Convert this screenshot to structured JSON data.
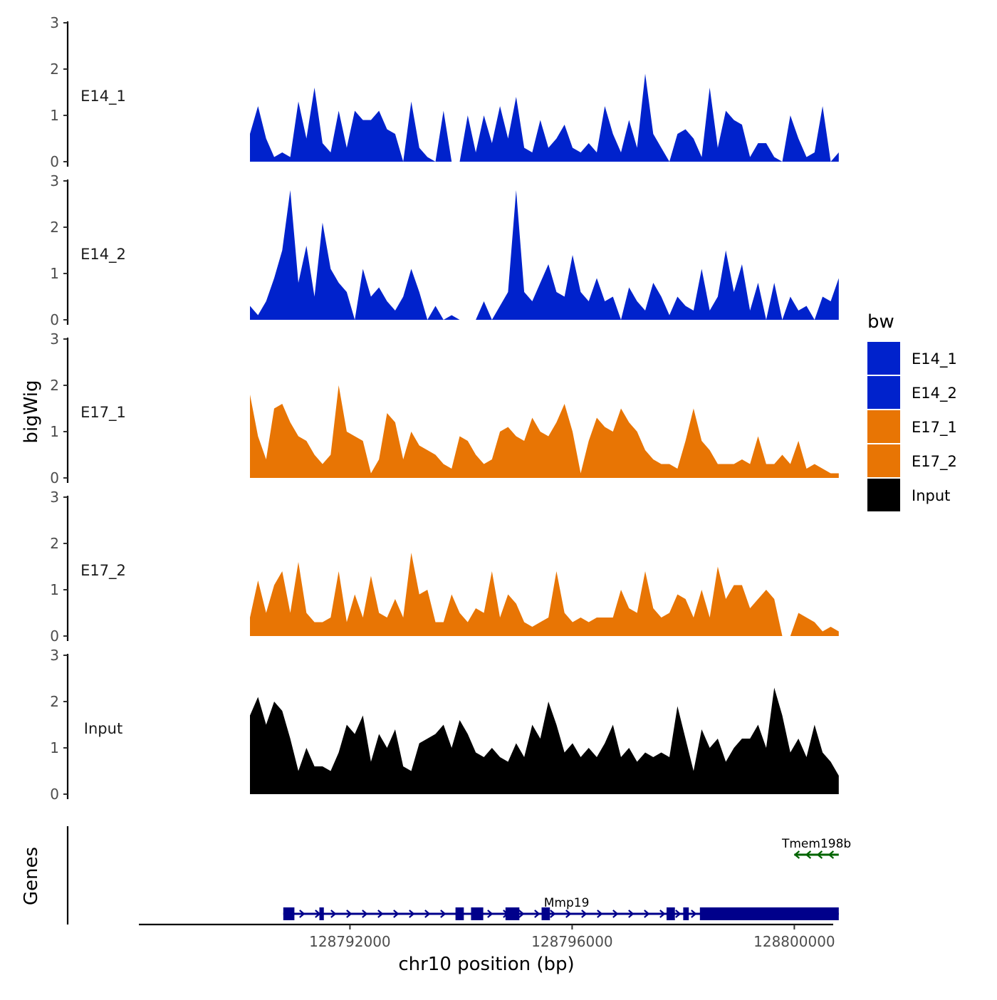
{
  "chart_data": {
    "type": "area",
    "title": "",
    "ylabel": "bigWig",
    "xlabel": "chr10 position (bp)",
    "genes_label": "Genes",
    "ylim": [
      0,
      3
    ],
    "y_ticks": [
      "0",
      "1",
      "2",
      "3"
    ],
    "xlim": [
      128788200,
      128800700
    ],
    "x_ticks": [
      128792000,
      128796000,
      128800000
    ],
    "x_tick_labels": [
      "128792000",
      "128796000",
      "128800000"
    ],
    "data_start": 128790200,
    "data_end": 128800800,
    "legend": {
      "title": "bw",
      "position": "right",
      "entries": [
        {
          "label": "E14_1",
          "color": "#0022CC"
        },
        {
          "label": "E14_2",
          "color": "#0022CC"
        },
        {
          "label": "E17_1",
          "color": "#E87504"
        },
        {
          "label": "E17_2",
          "color": "#E87504"
        },
        {
          "label": "Input",
          "color": "#000000"
        }
      ]
    },
    "series": [
      {
        "name": "E14_1",
        "color": "#0022CC",
        "values": [
          0.6,
          1.2,
          0.5,
          0.1,
          0.2,
          0.1,
          1.3,
          0.5,
          1.6,
          0.4,
          0.2,
          1.1,
          0.3,
          1.1,
          0.9,
          0.9,
          1.1,
          0.7,
          0.6,
          0.0,
          1.3,
          0.3,
          0.1,
          0.0,
          1.1,
          0.0,
          0.0,
          1.0,
          0.2,
          1.0,
          0.4,
          1.2,
          0.5,
          1.4,
          0.3,
          0.2,
          0.9,
          0.3,
          0.5,
          0.8,
          0.3,
          0.2,
          0.4,
          0.2,
          1.2,
          0.6,
          0.2,
          0.9,
          0.3,
          1.9,
          0.6,
          0.3,
          0.0,
          0.6,
          0.7,
          0.5,
          0.1,
          1.6,
          0.3,
          1.1,
          0.9,
          0.8,
          0.1,
          0.4,
          0.4,
          0.1,
          0.0,
          1.0,
          0.5,
          0.1,
          0.2,
          1.2,
          0.0,
          0.2
        ]
      },
      {
        "name": "E14_2",
        "color": "#0022CC",
        "values": [
          0.3,
          0.1,
          0.4,
          0.9,
          1.5,
          2.8,
          0.8,
          1.6,
          0.5,
          2.1,
          1.1,
          0.8,
          0.6,
          0.0,
          1.1,
          0.5,
          0.7,
          0.4,
          0.2,
          0.5,
          1.1,
          0.6,
          0.0,
          0.3,
          0.0,
          0.1,
          0.0,
          0.0,
          0.0,
          0.4,
          0.0,
          0.3,
          0.6,
          2.8,
          0.6,
          0.4,
          0.8,
          1.2,
          0.6,
          0.5,
          1.4,
          0.6,
          0.4,
          0.9,
          0.4,
          0.5,
          0.0,
          0.7,
          0.4,
          0.2,
          0.8,
          0.5,
          0.1,
          0.5,
          0.3,
          0.2,
          1.1,
          0.2,
          0.5,
          1.5,
          0.6,
          1.2,
          0.2,
          0.8,
          0.0,
          0.8,
          0.0,
          0.5,
          0.2,
          0.3,
          0.0,
          0.5,
          0.4,
          0.9
        ]
      },
      {
        "name": "E17_1",
        "color": "#E87504",
        "values": [
          1.8,
          0.9,
          0.4,
          1.5,
          1.6,
          1.2,
          0.9,
          0.8,
          0.5,
          0.3,
          0.5,
          2.0,
          1.0,
          0.9,
          0.8,
          0.1,
          0.4,
          1.4,
          1.2,
          0.4,
          1.0,
          0.7,
          0.6,
          0.5,
          0.3,
          0.2,
          0.9,
          0.8,
          0.5,
          0.3,
          0.4,
          1.0,
          1.1,
          0.9,
          0.8,
          1.3,
          1.0,
          0.9,
          1.2,
          1.6,
          1.0,
          0.1,
          0.8,
          1.3,
          1.1,
          1.0,
          1.5,
          1.2,
          1.0,
          0.6,
          0.4,
          0.3,
          0.3,
          0.2,
          0.8,
          1.5,
          0.8,
          0.6,
          0.3,
          0.3,
          0.3,
          0.4,
          0.3,
          0.9,
          0.3,
          0.3,
          0.5,
          0.3,
          0.8,
          0.2,
          0.3,
          0.2,
          0.1,
          0.1
        ]
      },
      {
        "name": "E17_2",
        "color": "#E87504",
        "values": [
          0.4,
          1.2,
          0.5,
          1.1,
          1.4,
          0.5,
          1.6,
          0.5,
          0.3,
          0.3,
          0.4,
          1.4,
          0.3,
          0.9,
          0.4,
          1.3,
          0.5,
          0.4,
          0.8,
          0.4,
          1.8,
          0.9,
          1.0,
          0.3,
          0.3,
          0.9,
          0.5,
          0.3,
          0.6,
          0.5,
          1.4,
          0.4,
          0.9,
          0.7,
          0.3,
          0.2,
          0.3,
          0.4,
          1.4,
          0.5,
          0.3,
          0.4,
          0.3,
          0.4,
          0.4,
          0.4,
          1.0,
          0.6,
          0.5,
          1.4,
          0.6,
          0.4,
          0.5,
          0.9,
          0.8,
          0.4,
          1.0,
          0.4,
          1.5,
          0.8,
          1.1,
          1.1,
          0.6,
          0.8,
          1.0,
          0.8,
          0.0,
          0.0,
          0.5,
          0.4,
          0.3,
          0.1,
          0.2,
          0.1
        ]
      },
      {
        "name": "Input",
        "color": "#000000",
        "values": [
          1.7,
          2.1,
          1.5,
          2.0,
          1.8,
          1.2,
          0.5,
          1.0,
          0.6,
          0.6,
          0.5,
          0.9,
          1.5,
          1.3,
          1.7,
          0.7,
          1.3,
          1.0,
          1.4,
          0.6,
          0.5,
          1.1,
          1.2,
          1.3,
          1.5,
          1.0,
          1.6,
          1.3,
          0.9,
          0.8,
          1.0,
          0.8,
          0.7,
          1.1,
          0.8,
          1.5,
          1.2,
          2.0,
          1.5,
          0.9,
          1.1,
          0.8,
          1.0,
          0.8,
          1.1,
          1.5,
          0.8,
          1.0,
          0.7,
          0.9,
          0.8,
          0.9,
          0.8,
          1.9,
          1.2,
          0.5,
          1.4,
          1.0,
          1.2,
          0.7,
          1.0,
          1.2,
          1.2,
          1.5,
          1.0,
          2.3,
          1.7,
          0.9,
          1.2,
          0.8,
          1.5,
          0.9,
          0.7,
          0.4
        ]
      }
    ],
    "genes": [
      {
        "name": "Mmp19",
        "start": 128790800,
        "end": 128800800,
        "strand": "+",
        "color": "#00008B",
        "exons": [
          [
            128790800,
            128791000
          ],
          [
            128791450,
            128791530
          ],
          [
            128793900,
            128794050
          ],
          [
            128794180,
            128794400
          ],
          [
            128794800,
            128795050
          ],
          [
            128795450,
            128795600
          ],
          [
            128797700,
            128797850
          ],
          [
            128798000,
            128798100
          ],
          [
            128798300,
            128800800
          ]
        ]
      },
      {
        "name": "Tmem198b",
        "start": 128800000,
        "end": 128800800,
        "strand": "-",
        "color": "#006400",
        "exons": []
      }
    ]
  }
}
